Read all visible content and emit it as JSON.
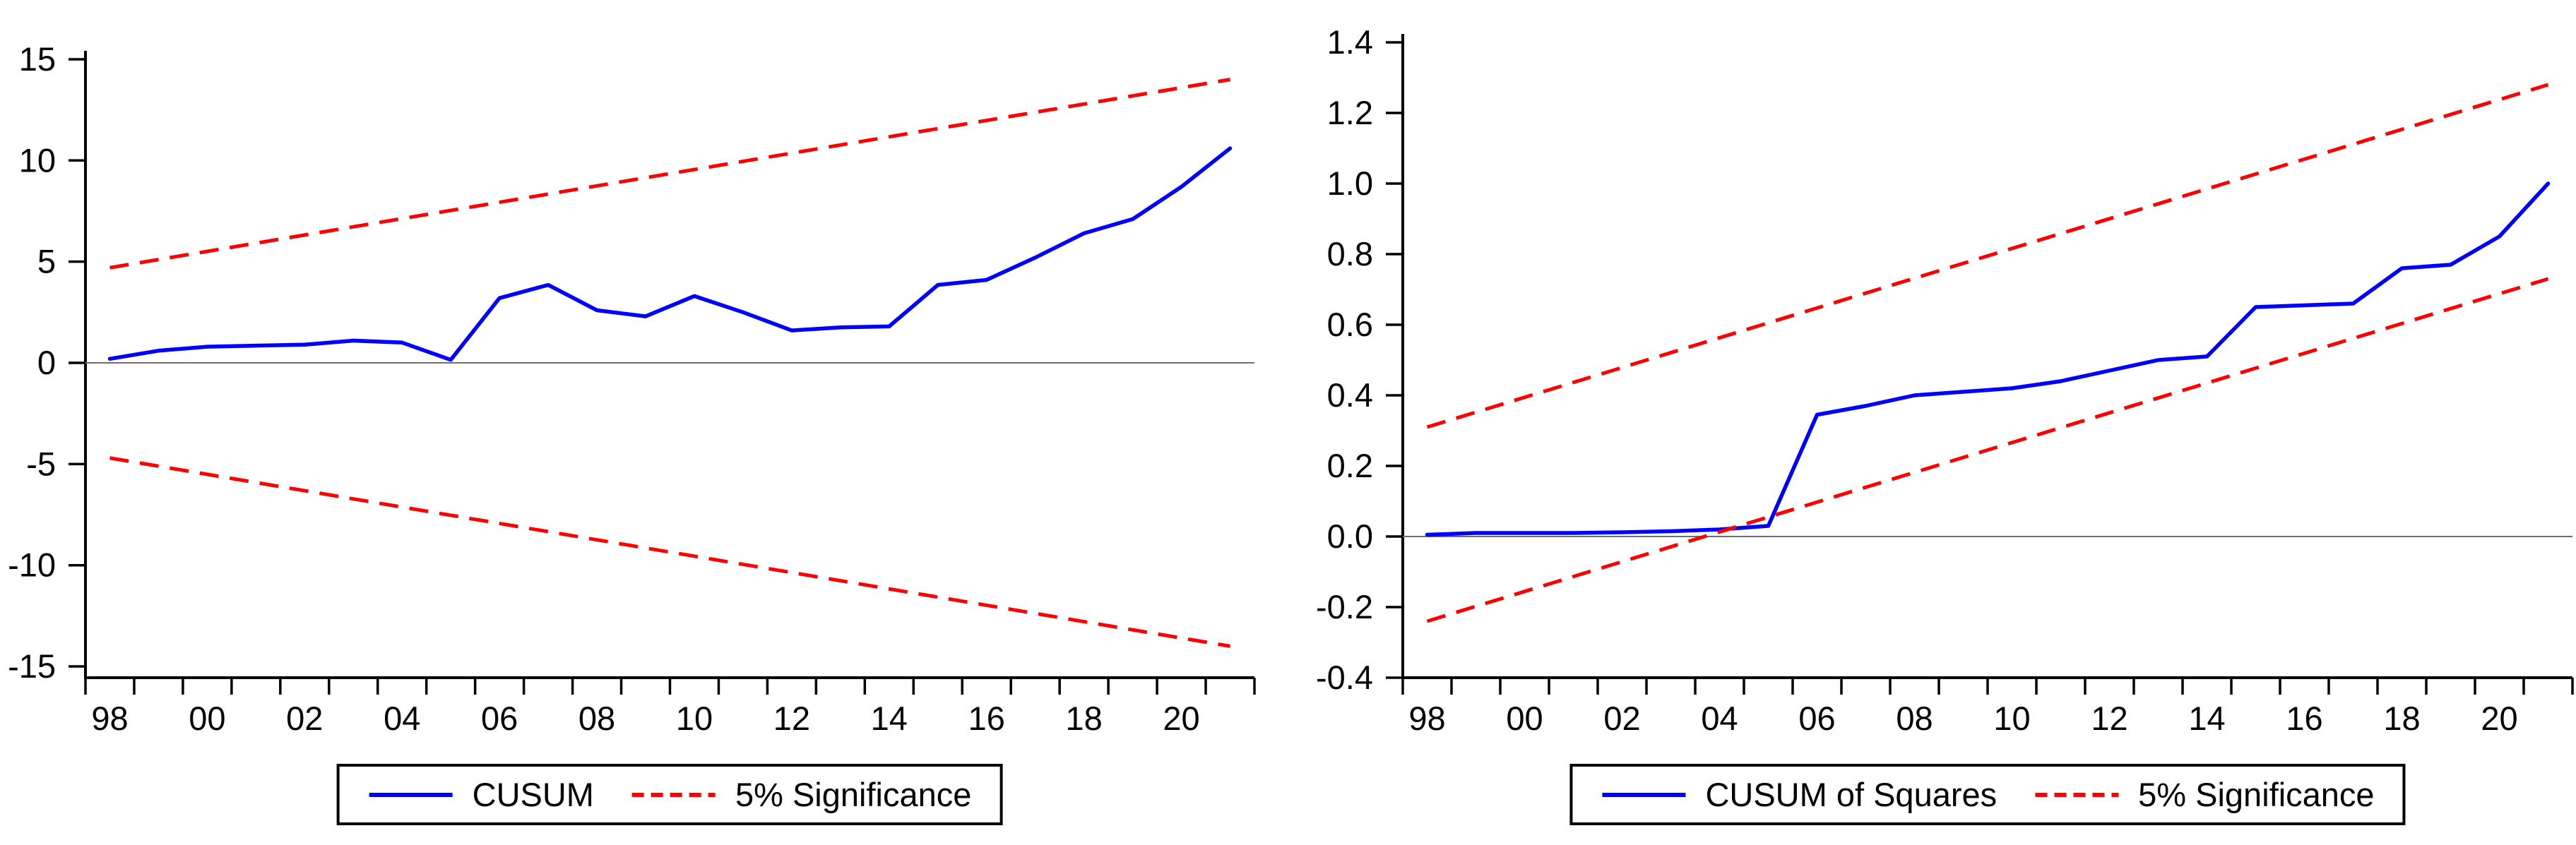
{
  "page": {
    "background_color": "#ffffff",
    "accent_blue": "#0000ff",
    "accent_red": "#ff0000"
  },
  "chart_data": [
    {
      "type": "line",
      "title": "",
      "xlabel": "",
      "ylabel": "",
      "x": [
        1998,
        1999,
        2000,
        2001,
        2002,
        2003,
        2004,
        2005,
        2006,
        2007,
        2008,
        2009,
        2010,
        2011,
        2012,
        2013,
        2014,
        2015,
        2016,
        2017,
        2018,
        2019,
        2020,
        2021
      ],
      "x_tick_years": [
        1998,
        2000,
        2002,
        2004,
        2006,
        2008,
        2010,
        2012,
        2014,
        2016,
        2018,
        2020
      ],
      "x_tick_labels": [
        "98",
        "00",
        "02",
        "04",
        "06",
        "08",
        "10",
        "12",
        "14",
        "16",
        "18",
        "20"
      ],
      "ylim": [
        -15,
        15
      ],
      "y_ticks": [
        15,
        10,
        5,
        0,
        -5,
        -10,
        -15
      ],
      "y_tick_labels": [
        "15",
        "10",
        "5",
        "0",
        "-5",
        "-10",
        "-15"
      ],
      "grid": false,
      "zero_line": 0,
      "series": [
        {
          "name": "CUSUM",
          "color": "#0000ff",
          "line_style": "solid",
          "values": [
            0.2,
            0.6,
            0.8,
            0.85,
            0.9,
            1.1,
            1.0,
            0.15,
            3.2,
            3.85,
            2.6,
            2.3,
            3.3,
            2.5,
            1.6,
            1.75,
            1.8,
            3.85,
            4.1,
            5.2,
            6.4,
            7.1,
            8.7,
            10.6
          ]
        },
        {
          "name": "5% Significance upper bound",
          "color": "#ff0000",
          "line_style": "dashed",
          "values_endpoints": [
            4.7,
            14.0
          ]
        },
        {
          "name": "5% Significance lower bound",
          "color": "#ff0000",
          "line_style": "dashed",
          "values_endpoints": [
            -4.7,
            -14.0
          ]
        }
      ],
      "legend": {
        "position": "bottom-center",
        "entries": [
          {
            "label": "CUSUM",
            "color": "#0000ff",
            "dashed": false
          },
          {
            "label": "5% Significance",
            "color": "#ff0000",
            "dashed": true
          }
        ]
      }
    },
    {
      "type": "line",
      "title": "",
      "xlabel": "",
      "ylabel": "",
      "x": [
        1998,
        1999,
        2000,
        2001,
        2002,
        2003,
        2004,
        2005,
        2006,
        2007,
        2008,
        2009,
        2010,
        2011,
        2012,
        2013,
        2014,
        2015,
        2016,
        2017,
        2018,
        2019,
        2020,
        2021
      ],
      "x_tick_years": [
        1998,
        2000,
        2002,
        2004,
        2006,
        2008,
        2010,
        2012,
        2014,
        2016,
        2018,
        2020
      ],
      "x_tick_labels": [
        "98",
        "00",
        "02",
        "04",
        "06",
        "08",
        "10",
        "12",
        "14",
        "16",
        "18",
        "20"
      ],
      "ylim": [
        -0.4,
        1.4
      ],
      "y_ticks": [
        1.4,
        1.2,
        1.0,
        0.8,
        0.6,
        0.4,
        0.2,
        0.0,
        -0.2,
        -0.4
      ],
      "y_tick_labels": [
        "1.4",
        "1.2",
        "1.0",
        "0.8",
        "0.6",
        "0.4",
        "0.2",
        "0.0",
        "-0.2",
        "-0.4"
      ],
      "grid": false,
      "zero_line": 0,
      "series": [
        {
          "name": "CUSUM of Squares",
          "color": "#0000ff",
          "line_style": "solid",
          "values": [
            0.005,
            0.01,
            0.01,
            0.01,
            0.012,
            0.015,
            0.02,
            0.03,
            0.345,
            0.37,
            0.4,
            0.41,
            0.42,
            0.44,
            0.47,
            0.5,
            0.51,
            0.65,
            0.655,
            0.66,
            0.76,
            0.77,
            0.85,
            1.0
          ]
        },
        {
          "name": "5% Significance upper bound",
          "color": "#ff0000",
          "line_style": "dashed",
          "values_endpoints": [
            0.31,
            1.28
          ]
        },
        {
          "name": "5% Significance lower bound",
          "color": "#ff0000",
          "line_style": "dashed",
          "values_endpoints": [
            -0.24,
            0.73
          ]
        }
      ],
      "legend": {
        "position": "bottom-center",
        "entries": [
          {
            "label": "CUSUM of Squares",
            "color": "#0000ff",
            "dashed": false
          },
          {
            "label": "5% Significance",
            "color": "#ff0000",
            "dashed": true
          }
        ]
      }
    }
  ]
}
